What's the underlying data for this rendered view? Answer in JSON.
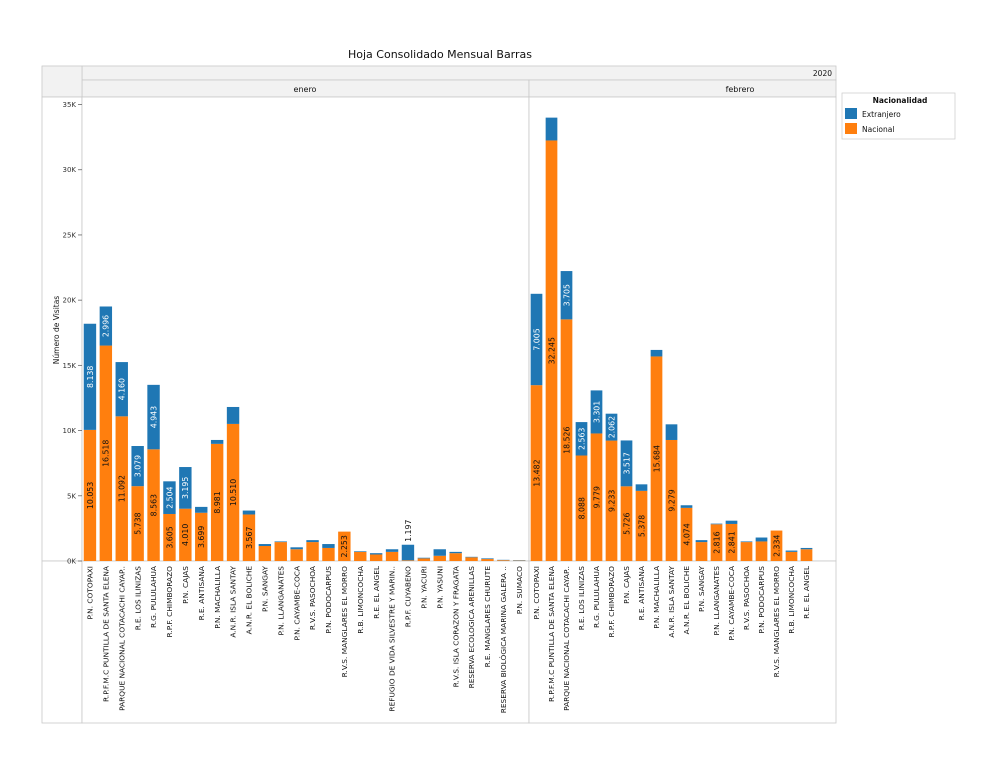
{
  "chart_data": {
    "type": "bar",
    "stacked": true,
    "title": "Hoja Consolidado Mensual Barras",
    "year_label": "2020",
    "ylabel": "Número de Visitas",
    "ylim": [
      0,
      35500
    ],
    "yticks": [
      0,
      5000,
      10000,
      15000,
      20000,
      25000,
      30000,
      35000
    ],
    "ytick_labels": [
      "0K",
      "5K",
      "10K",
      "15K",
      "20K",
      "25K",
      "30K",
      "35K"
    ],
    "legend": {
      "title": "Nacionalidad",
      "placement": "top-right",
      "entries": [
        {
          "name": "Extranjero",
          "color": "#1f77b4"
        },
        {
          "name": "Nacional",
          "color": "#ff7f0e"
        }
      ]
    },
    "panels": [
      {
        "month": "enero",
        "categories": [
          "P.N. COTOPAXI",
          "R.P.F.M.C PUNTILLA DE SANTA ELENA",
          "PARQUE NACIONAL COTACACHI CAYAP..",
          "R.E. LOS ILINIZAS",
          "R.G. PULULAHUA",
          "R.P.F. CHIMBORAZO",
          "P.N. CAJAS",
          "R.E. ANTISANA",
          "P.N. MACHALILLA",
          "A.N.R. ISLA SANTAY",
          "A.N.R. EL BOLICHE",
          "P.N. SANGAY",
          "P.N. LLANGANATES",
          "P.N. CAYAMBE-COCA",
          "R.V.S. PASOCHOA",
          "P.N. PODOCARPUS",
          "R.V.S. MANGLARES EL MORRO",
          "R.B. LIMONCOCHA",
          "R.E. EL ANGEL",
          "REFUGIO DE VIDA SILVESTRE Y MARIN..",
          "R.P.F. CUYABENO",
          "P.N. YACURI",
          "P.N. YASUNI",
          "R.V.S. ISLA CORAZON Y FRAGATA",
          "RESERVA ECOLOGICA ARENILLAS",
          "R.E. MANGLARES CHURUTE",
          "RESERVA BIOLÓGICA MARINA GALERA ..",
          "P.N. SUMACO"
        ],
        "series": [
          {
            "name": "Nacional",
            "values": [
              10053,
              16518,
              11092,
              5738,
              8563,
              3605,
              4010,
              3699,
              8981,
              10510,
              3567,
              1150,
              1450,
              900,
              1450,
              1000,
              2253,
              700,
              500,
              700,
              50,
              200,
              400,
              600,
              280,
              150,
              60,
              30
            ]
          },
          {
            "name": "Extranjero",
            "values": [
              8138,
              2996,
              4160,
              3079,
              4943,
              2504,
              3195,
              450,
              300,
              1300,
              300,
              150,
              50,
              150,
              150,
              300,
              0,
              50,
              100,
              200,
              1197,
              50,
              500,
              100,
              40,
              50,
              30,
              30
            ]
          }
        ],
        "labels": {
          "Nacional": [
            "10.053",
            "16.518",
            "11.092",
            "5.738",
            "8.563",
            "3.605",
            "4.010",
            "3.699",
            "8.981",
            "10.510",
            "3.567",
            "",
            "",
            "",
            "",
            "",
            "2.253",
            "",
            "",
            "",
            "",
            "",
            "",
            "",
            "",
            "",
            "",
            ""
          ],
          "Extranjero": [
            "8.138",
            "2.996",
            "4.160",
            "3.079",
            "4.943",
            "2.504",
            "3.195",
            "",
            "",
            "",
            "",
            "",
            "",
            "",
            "",
            "",
            "",
            "",
            "",
            "",
            "1.197",
            "",
            "",
            "",
            "",
            "",
            "",
            ""
          ]
        }
      },
      {
        "month": "febrero",
        "categories": [
          "P.N. COTOPAXI",
          "R.P.F.M.C PUNTILLA DE SANTA ELENA",
          "PARQUE NACIONAL COTACACHI CAYAP..",
          "R.E. LOS ILINIZAS",
          "R.G. PULULAHUA",
          "R.P.F. CHIMBORAZO",
          "P.N. CAJAS",
          "R.E. ANTISANA",
          "P.N. MACHALILLA",
          "A.N.R. ISLA SANTAY",
          "A.N.R. EL BOLICHE",
          "P.N. SANGAY",
          "P.N. LLANGANATES",
          "P.N. CAYAMBE-COCA",
          "R.V.S. PASOCHOA",
          "P.N. PODOCARPUS",
          "R.V.S. MANGLARES EL MORRO",
          "R.B. LIMONCOCHA",
          "R.E. EL ANGEL"
        ],
        "series": [
          {
            "name": "Nacional",
            "values": [
              13482,
              32245,
              18526,
              8088,
              9779,
              9233,
              5726,
              5378,
              15684,
              9279,
              4074,
              1450,
              2816,
              2841,
              1450,
              1500,
              2334,
              700,
              900
            ]
          },
          {
            "name": "Extranjero",
            "values": [
              7005,
              1750,
              3705,
              2563,
              3301,
              2062,
              3517,
              500,
              500,
              1200,
              200,
              150,
              50,
              250,
              50,
              300,
              0,
              100,
              100
            ]
          }
        ],
        "labels": {
          "Nacional": [
            "13.482",
            "32.245",
            "18.526",
            "8.088",
            "9.779",
            "9.233",
            "5.726",
            "5.378",
            "15.684",
            "9.279",
            "4.074",
            "",
            "2.816",
            "2.841",
            "",
            "",
            "2.334",
            "",
            ""
          ],
          "Extranjero": [
            "7.005",
            "",
            "3.705",
            "2.563",
            "3.301",
            "2.062",
            "3.517",
            "",
            "",
            "",
            "",
            "",
            "",
            "",
            "",
            "",
            "",
            "",
            ""
          ]
        }
      }
    ]
  }
}
